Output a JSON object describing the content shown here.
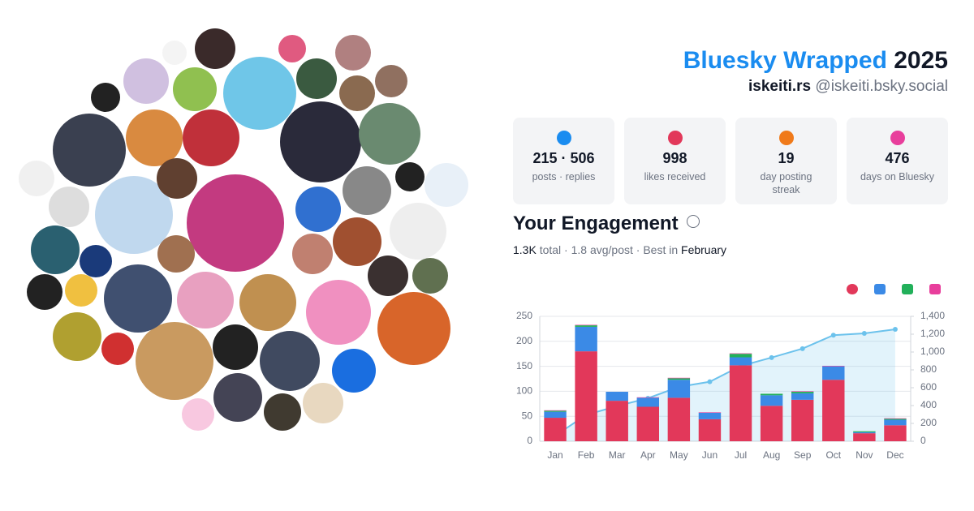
{
  "header": {
    "brand": "Bluesky Wrapped",
    "year": "2025",
    "display_name": "iskeiti.rs",
    "handle": "@iskeiti.bsky.social"
  },
  "stats": [
    {
      "value": "215 · 506",
      "label": "posts · replies"
    },
    {
      "value": "998",
      "label": "likes received"
    },
    {
      "value": "19",
      "label": "day posting streak"
    },
    {
      "value": "476",
      "label": "days on Bluesky"
    }
  ],
  "engagement": {
    "title": "Your Engagement",
    "total": "1.3K",
    "summary": "total · 1.8 avg/post · Best in",
    "best": "February"
  },
  "chart_data": {
    "type": "bar",
    "categories": [
      "Jan",
      "Feb",
      "Mar",
      "Apr",
      "May",
      "Jun",
      "Jul",
      "Aug",
      "Sep",
      "Oct",
      "Nov",
      "Dec"
    ],
    "stacked": true,
    "series": [
      {
        "color": "#e2385a",
        "values": [
          47,
          180,
          81,
          69,
          87,
          44,
          152,
          71,
          83,
          123,
          16,
          32
        ]
      },
      {
        "color": "#3b8ae6",
        "values": [
          12,
          49,
          18,
          18,
          36,
          13,
          16,
          21,
          13,
          27,
          2,
          11
        ]
      },
      {
        "color": "#22b05a",
        "values": [
          2,
          3,
          0,
          0,
          3,
          0,
          7,
          3,
          3,
          0,
          2,
          2
        ]
      },
      {
        "color": "#e83e9c",
        "values": [
          1,
          1,
          0,
          1,
          1,
          1,
          1,
          0,
          1,
          1,
          0,
          1
        ]
      },
      {
        "type": "area",
        "axis": "y2",
        "color": "#6cc2ec",
        "values": [
          62,
          295,
          394,
          482,
          609,
          667,
          843,
          938,
          1038,
          1189,
          1209,
          1255
        ]
      }
    ],
    "ylim": [
      0,
      250
    ],
    "yticks": [
      0,
      50,
      100,
      150,
      200,
      250
    ],
    "y2lim": [
      0,
      1400
    ],
    "y2ticks": [
      0,
      200,
      400,
      600,
      800,
      {
        "value": 1000,
        "label": "1,000"
      },
      {
        "value": 1200,
        "label": "1,200"
      },
      {
        "value": 1400,
        "label": "1,400"
      }
    ],
    "grid": true
  }
}
